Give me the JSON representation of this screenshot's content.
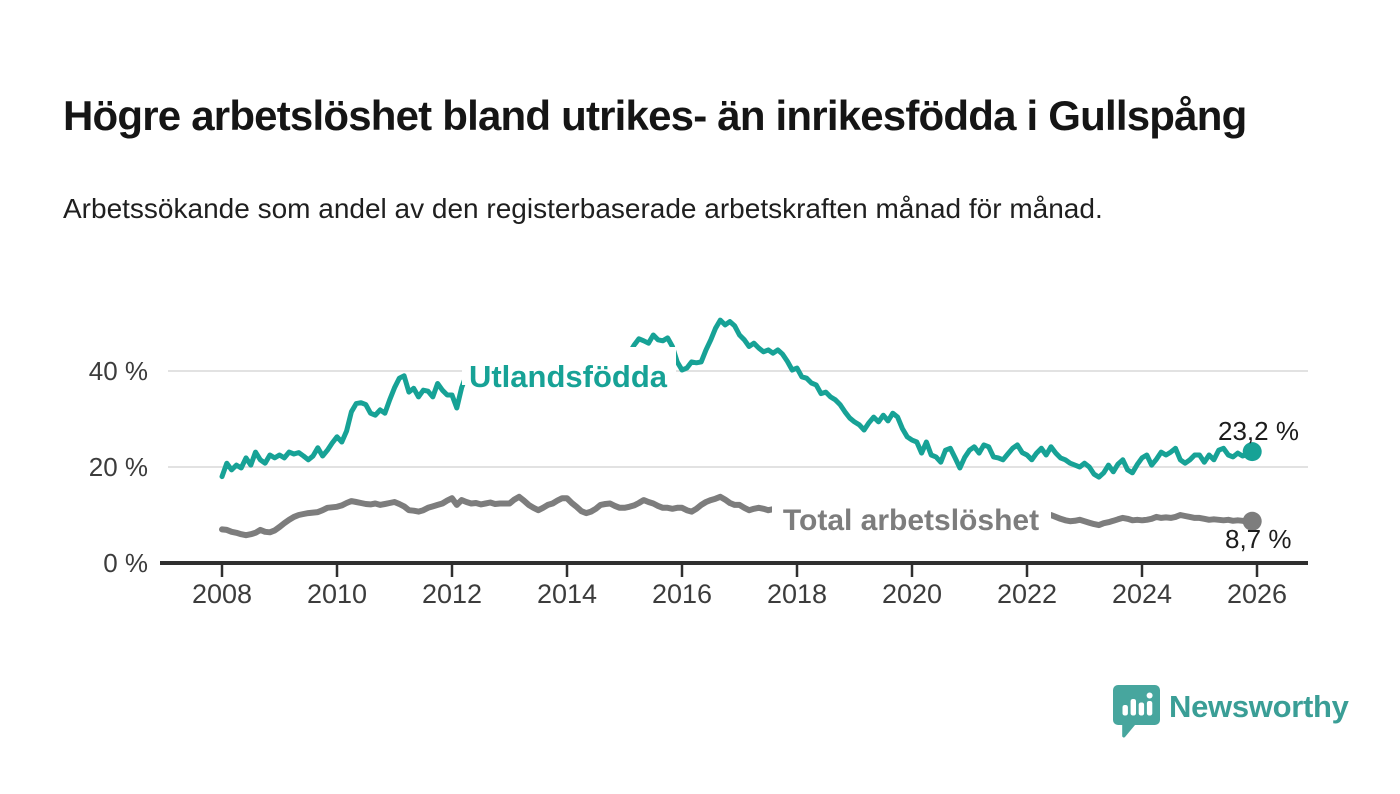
{
  "header": {
    "title": "Högre arbetslöshet bland utrikes- än inrikesfödda i Gullspång",
    "subtitle": "Arbetssökande som andel av den registerbaserade arbetskraften månad för månad."
  },
  "footer": {
    "brand": "Newsworthy"
  },
  "colors": {
    "accent_teal": "#17a296",
    "total_gray": "#7d7d7d",
    "brand_teal": "#3a9e96",
    "logo_teal": "#47a69e",
    "gridline": "#d9d9d9",
    "axis": "#2f2f2f",
    "tick_text": "#3c3c3c",
    "value_text": "#1d1d1d"
  },
  "chart_data": {
    "type": "line",
    "title": "Högre arbetslöshet bland utrikes- än inrikesfödda i Gullspång",
    "subtitle": "Arbetssökande som andel av den registerbaserade arbetskraften månad för månad.",
    "unit": "%",
    "x_start_year": 2008,
    "x_months_per_point": 1,
    "x_range_years": [
      2008,
      2026
    ],
    "ylim": [
      0,
      53
    ],
    "grid": "horizontal",
    "legend": "inline-series-labels",
    "x_ticks": [
      {
        "year": 2008,
        "label": "2008"
      },
      {
        "year": 2010,
        "label": "2010"
      },
      {
        "year": 2012,
        "label": "2012"
      },
      {
        "year": 2014,
        "label": "2014"
      },
      {
        "year": 2016,
        "label": "2016"
      },
      {
        "year": 2018,
        "label": "2018"
      },
      {
        "year": 2020,
        "label": "2020"
      },
      {
        "year": 2022,
        "label": "2022"
      },
      {
        "year": 2024,
        "label": "2024"
      },
      {
        "year": 2026,
        "label": "2026"
      }
    ],
    "y_ticks": [
      {
        "value": 0,
        "label": "0 %"
      },
      {
        "value": 20,
        "label": "20 %"
      },
      {
        "value": 40,
        "label": "40 %"
      }
    ],
    "series": [
      {
        "name": "Utlandsfödda",
        "color": "#17a296",
        "line_width": 5,
        "end_value": 23.2,
        "end_label": "23,2 %",
        "values": [
          18.0,
          20.8,
          19.4,
          20.4,
          19.8,
          21.9,
          20.4,
          23.1,
          21.5,
          20.8,
          22.5,
          21.9,
          22.5,
          21.9,
          23.1,
          22.7,
          23.0,
          22.3,
          21.5,
          22.3,
          24.0,
          22.3,
          23.5,
          25.0,
          26.3,
          25.2,
          27.5,
          31.5,
          33.2,
          33.4,
          33.0,
          31.2,
          30.8,
          31.9,
          31.2,
          34.0,
          36.5,
          38.5,
          39.0,
          35.6,
          36.4,
          34.6,
          36.0,
          35.8,
          34.6,
          37.4,
          36.0,
          35.0,
          35.0,
          32.3,
          36.5,
          39.2,
          39.8,
          39.3,
          40.5,
          40.0,
          41.0,
          41.8,
          41.2,
          42.0,
          42.5,
          41.8,
          42.8,
          42.2,
          43.0,
          42.4,
          43.2,
          42.6,
          43.4,
          42.8,
          43.5,
          43.0,
          43.8,
          43.2,
          44.0,
          43.4,
          44.2,
          43.6,
          44.0,
          43.3,
          43.8,
          43.2,
          44.0,
          43.5,
          43.6,
          43.7,
          45.4,
          46.7,
          46.3,
          45.8,
          47.5,
          46.5,
          46.3,
          46.9,
          45.1,
          41.9,
          40.2,
          40.6,
          41.9,
          41.7,
          41.9,
          44.4,
          46.5,
          48.9,
          50.6,
          49.6,
          50.3,
          49.4,
          47.5,
          46.5,
          45.1,
          45.8,
          44.8,
          44.0,
          44.4,
          43.7,
          44.4,
          43.5,
          42.0,
          40.2,
          40.6,
          38.8,
          38.5,
          37.5,
          37.1,
          35.3,
          35.6,
          34.6,
          34.0,
          33.0,
          31.5,
          30.2,
          29.4,
          28.8,
          27.7,
          29.2,
          30.4,
          29.4,
          30.8,
          29.6,
          31.2,
          30.4,
          28.0,
          26.3,
          25.6,
          25.2,
          22.9,
          25.2,
          22.5,
          22.1,
          21.0,
          23.5,
          23.9,
          21.9,
          19.8,
          22.0,
          23.5,
          24.2,
          22.9,
          24.6,
          24.2,
          22.1,
          21.9,
          21.5,
          22.7,
          23.9,
          24.6,
          23.0,
          22.5,
          21.5,
          22.9,
          23.9,
          22.5,
          24.2,
          22.9,
          21.9,
          21.5,
          20.8,
          20.4,
          20.0,
          20.8,
          20.0,
          18.5,
          17.9,
          18.8,
          20.4,
          19.0,
          20.6,
          21.5,
          19.4,
          18.8,
          20.5,
          21.9,
          22.5,
          20.4,
          21.6,
          23.1,
          22.5,
          23.1,
          23.9,
          21.5,
          20.8,
          21.5,
          22.5,
          22.5,
          21.0,
          22.5,
          21.5,
          23.5,
          23.9,
          22.5,
          22.1,
          22.9,
          22.3,
          22.6,
          23.2
        ]
      },
      {
        "name": "Total arbetslöshet",
        "color": "#7d7d7d",
        "line_width": 6,
        "end_value": 8.7,
        "end_label": "8,7 %",
        "values": [
          7.0,
          6.9,
          6.5,
          6.3,
          6.0,
          5.8,
          6.0,
          6.3,
          6.9,
          6.5,
          6.4,
          6.8,
          7.5,
          8.3,
          9.0,
          9.6,
          10.0,
          10.2,
          10.4,
          10.5,
          10.6,
          11.0,
          11.5,
          11.6,
          11.7,
          12.0,
          12.5,
          12.9,
          12.7,
          12.5,
          12.3,
          12.2,
          12.4,
          12.1,
          12.3,
          12.5,
          12.7,
          12.3,
          11.8,
          11.0,
          10.9,
          10.7,
          11.0,
          11.5,
          11.8,
          12.1,
          12.4,
          13.0,
          13.5,
          12.1,
          13.1,
          12.7,
          12.4,
          12.5,
          12.2,
          12.4,
          12.6,
          12.3,
          12.4,
          12.4,
          12.4,
          13.2,
          13.8,
          13.0,
          12.1,
          11.5,
          11.0,
          11.5,
          12.1,
          12.4,
          13.0,
          13.5,
          13.5,
          12.5,
          11.7,
          10.8,
          10.4,
          10.7,
          11.3,
          12.1,
          12.3,
          12.4,
          11.9,
          11.5,
          11.5,
          11.7,
          12.0,
          12.5,
          13.1,
          12.7,
          12.4,
          11.9,
          11.5,
          11.5,
          11.3,
          11.5,
          11.5,
          11.0,
          10.7,
          11.3,
          12.1,
          12.7,
          13.1,
          13.4,
          13.8,
          13.2,
          12.5,
          12.1,
          12.1,
          11.5,
          11.0,
          11.3,
          11.5,
          11.3,
          11.0,
          11.2,
          11.0,
          10.8,
          10.9,
          10.7,
          10.6,
          10.4,
          10.5,
          10.3,
          10.2,
          10.3,
          10.1,
          10.2,
          10.0,
          10.1,
          9.9,
          10.0,
          9.9,
          10.0,
          9.8,
          9.9,
          10.0,
          9.8,
          9.9,
          10.1,
          10.0,
          10.2,
          10.1,
          10.3,
          10.4,
          10.6,
          10.9,
          11.2,
          11.0,
          10.8,
          10.7,
          10.5,
          10.4,
          10.2,
          10.0,
          9.9,
          9.8,
          9.9,
          9.7,
          9.6,
          9.5,
          9.6,
          9.4,
          9.5,
          9.3,
          9.4,
          9.5,
          9.4,
          9.5,
          9.4,
          9.5,
          9.6,
          9.4,
          10.0,
          9.6,
          9.2,
          8.9,
          8.7,
          8.8,
          9.0,
          8.7,
          8.4,
          8.1,
          7.9,
          8.3,
          8.5,
          8.8,
          9.1,
          9.4,
          9.2,
          8.9,
          9.0,
          8.9,
          9.0,
          9.2,
          9.6,
          9.4,
          9.5,
          9.4,
          9.6,
          10.0,
          9.8,
          9.6,
          9.4,
          9.4,
          9.2,
          9.0,
          9.1,
          9.0,
          8.9,
          9.0,
          8.8,
          8.9,
          8.8,
          8.6,
          8.7
        ]
      }
    ]
  }
}
